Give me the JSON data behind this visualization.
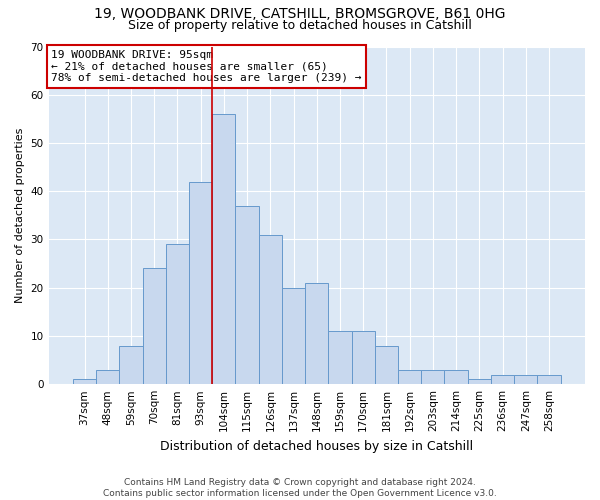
{
  "title1": "19, WOODBANK DRIVE, CATSHILL, BROMSGROVE, B61 0HG",
  "title2": "Size of property relative to detached houses in Catshill",
  "xlabel": "Distribution of detached houses by size in Catshill",
  "ylabel": "Number of detached properties",
  "footnote1": "Contains HM Land Registry data © Crown copyright and database right 2024.",
  "footnote2": "Contains public sector information licensed under the Open Government Licence v3.0.",
  "bar_labels": [
    "37sqm",
    "48sqm",
    "59sqm",
    "70sqm",
    "81sqm",
    "93sqm",
    "104sqm",
    "115sqm",
    "126sqm",
    "137sqm",
    "148sqm",
    "159sqm",
    "170sqm",
    "181sqm",
    "192sqm",
    "203sqm",
    "214sqm",
    "225sqm",
    "236sqm",
    "247sqm",
    "258sqm"
  ],
  "bar_values": [
    1,
    3,
    8,
    24,
    29,
    42,
    56,
    37,
    31,
    20,
    21,
    11,
    11,
    8,
    3,
    3,
    3,
    1,
    2,
    2,
    2
  ],
  "bar_color": "#c8d8ee",
  "bar_edge_color": "#6699cc",
  "vline_x": 5.5,
  "vline_color": "#cc0000",
  "annotation_text": "19 WOODBANK DRIVE: 95sqm\n← 21% of detached houses are smaller (65)\n78% of semi-detached houses are larger (239) →",
  "annotation_box_color": "#ffffff",
  "annotation_box_edge": "#cc0000",
  "ylim": [
    0,
    70
  ],
  "yticks": [
    0,
    10,
    20,
    30,
    40,
    50,
    60,
    70
  ],
  "fig_bg": "#ffffff",
  "plot_bg": "#dce8f5",
  "grid_color": "#ffffff",
  "title1_fontsize": 10,
  "title2_fontsize": 9,
  "xlabel_fontsize": 9,
  "ylabel_fontsize": 8,
  "tick_fontsize": 7.5,
  "footnote_fontsize": 6.5
}
